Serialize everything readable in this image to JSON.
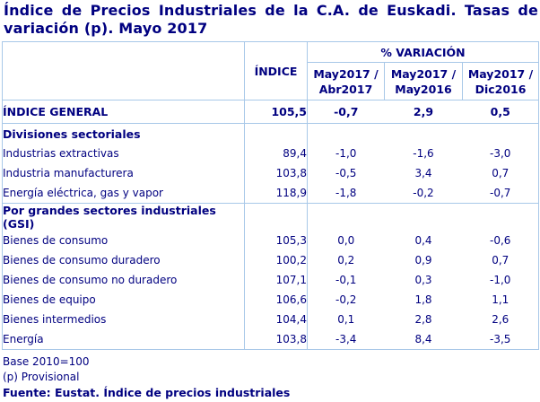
{
  "title": "Índice de Precios Industriales de la C.A. de Euskadi. Tasas de variación (p). Mayo 2017",
  "table": {
    "headers": {
      "indice": "ÍNDICE",
      "variacion_group": "% VARIACIÓN",
      "var_cols": [
        {
          "line1": "May2017 /",
          "line2": "Abr2017"
        },
        {
          "line1": "May2017 /",
          "line2": "May2016"
        },
        {
          "line1": "May2017 /",
          "line2": "Dic2016"
        }
      ]
    },
    "general": {
      "label": "ÍNDICE GENERAL",
      "indice": "105,5",
      "v1": "-0,7",
      "v2": "2,9",
      "v3": "0,5"
    },
    "sections": [
      {
        "title": "Divisiones sectoriales",
        "rows": [
          {
            "label": "Industrias extractivas",
            "indice": "89,4",
            "v1": "-1,0",
            "v2": "-1,6",
            "v3": "-3,0"
          },
          {
            "label": "Industria manufacturera",
            "indice": "103,8",
            "v1": "-0,5",
            "v2": "3,4",
            "v3": "0,7"
          },
          {
            "label": "Energía eléctrica, gas y vapor",
            "indice": "118,9",
            "v1": "-1,8",
            "v2": "-0,2",
            "v3": "-0,7"
          }
        ]
      },
      {
        "title": "Por grandes sectores industriales (GSI)",
        "rows": [
          {
            "label": "Bienes de consumo",
            "indice": "105,3",
            "v1": "0,0",
            "v2": "0,4",
            "v3": "-0,6"
          },
          {
            "label": "Bienes de consumo duradero",
            "indice": "100,2",
            "v1": "0,2",
            "v2": "0,9",
            "v3": "0,7"
          },
          {
            "label": "Bienes de consumo no duradero",
            "indice": "107,1",
            "v1": "-0,1",
            "v2": "0,3",
            "v3": "-1,0"
          },
          {
            "label": "Bienes de equipo",
            "indice": "106,6",
            "v1": "-0,2",
            "v2": "1,8",
            "v3": "1,1"
          },
          {
            "label": "Bienes intermedios",
            "indice": "104,4",
            "v1": "0,1",
            "v2": "2,8",
            "v3": "2,6"
          },
          {
            "label": "Energía",
            "indice": "103,8",
            "v1": "-3,4",
            "v2": "8,4",
            "v3": "-3,5"
          }
        ]
      }
    ]
  },
  "notes": {
    "base": "Base 2010=100",
    "provisional": "(p) Provisional",
    "source": "Fuente: Eustat. Índice de precios industriales"
  },
  "colors": {
    "text": "#000080",
    "border": "#a8c8e8",
    "background": "#ffffff"
  }
}
